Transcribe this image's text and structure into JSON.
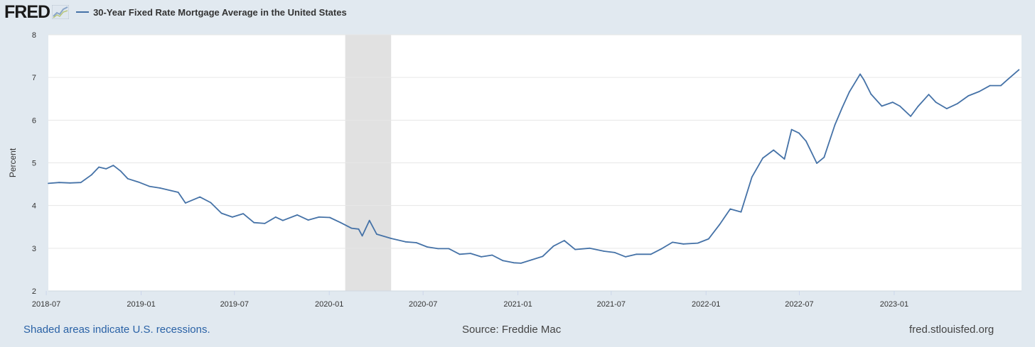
{
  "header": {
    "logo_text": "FRED",
    "series_title": "30-Year Fixed Rate Mortgage Average in the United States"
  },
  "footer": {
    "recession_note": "Shaded areas indicate U.S. recessions.",
    "source": "Source: Freddie Mac",
    "site": "fred.stlouisfed.org"
  },
  "colors": {
    "line": "#4572a7",
    "background": "#e1e9f0",
    "plot_bg": "#ffffff",
    "recession": "#e1e1e1",
    "grid": "#e6e6e6"
  },
  "chart_data": {
    "type": "line",
    "title": "30-Year Fixed Rate Mortgage Average in the United States",
    "xlabel": "",
    "ylabel": "Percent",
    "ylim": [
      2,
      8
    ],
    "yticks": [
      "2",
      "3",
      "4",
      "5",
      "6",
      "7",
      "8"
    ],
    "xlim": [
      "2018-07-05",
      "2023-09-05"
    ],
    "xticks": [
      "2018-07",
      "2019-01",
      "2019-07",
      "2020-01",
      "2020-07",
      "2021-01",
      "2021-07",
      "2022-01",
      "2022-07",
      "2023-01"
    ],
    "grid": true,
    "legend": "top-left",
    "recessions": [
      {
        "start": "2020-02-01",
        "end": "2020-04-30"
      }
    ],
    "series": [
      {
        "name": "30-Year Fixed Rate Mortgage Average in the United States",
        "x": [
          "2018-07-05",
          "2018-07-26",
          "2018-08-16",
          "2018-09-06",
          "2018-09-27",
          "2018-10-11",
          "2018-10-25",
          "2018-11-08",
          "2018-11-22",
          "2018-12-06",
          "2018-12-27",
          "2019-01-17",
          "2019-02-07",
          "2019-02-28",
          "2019-03-14",
          "2019-03-28",
          "2019-04-25",
          "2019-05-16",
          "2019-06-06",
          "2019-06-27",
          "2019-07-18",
          "2019-08-08",
          "2019-08-29",
          "2019-09-19",
          "2019-10-03",
          "2019-10-31",
          "2019-11-21",
          "2019-12-12",
          "2020-01-02",
          "2020-01-23",
          "2020-02-13",
          "2020-02-27",
          "2020-03-05",
          "2020-03-19",
          "2020-04-02",
          "2020-04-30",
          "2020-05-28",
          "2020-06-18",
          "2020-07-09",
          "2020-07-30",
          "2020-08-20",
          "2020-09-10",
          "2020-10-01",
          "2020-10-22",
          "2020-11-12",
          "2020-12-03",
          "2020-12-24",
          "2021-01-07",
          "2021-01-28",
          "2021-02-18",
          "2021-03-11",
          "2021-04-01",
          "2021-04-22",
          "2021-05-20",
          "2021-06-17",
          "2021-07-08",
          "2021-07-29",
          "2021-08-19",
          "2021-09-16",
          "2021-10-07",
          "2021-10-28",
          "2021-11-18",
          "2021-12-16",
          "2022-01-06",
          "2022-01-27",
          "2022-02-17",
          "2022-03-10",
          "2022-03-31",
          "2022-04-21",
          "2022-05-12",
          "2022-06-02",
          "2022-06-16",
          "2022-06-30",
          "2022-07-14",
          "2022-08-04",
          "2022-08-18",
          "2022-09-08",
          "2022-09-22",
          "2022-10-06",
          "2022-10-20",
          "2022-10-27",
          "2022-11-03",
          "2022-11-17",
          "2022-12-08",
          "2022-12-29",
          "2023-01-12",
          "2023-02-02",
          "2023-02-16",
          "2023-03-09",
          "2023-03-23",
          "2023-04-13",
          "2023-05-04",
          "2023-05-25",
          "2023-06-15",
          "2023-07-06",
          "2023-07-27",
          "2023-08-10",
          "2023-08-31"
        ],
        "values": [
          4.52,
          4.54,
          4.53,
          4.54,
          4.72,
          4.9,
          4.86,
          4.94,
          4.81,
          4.63,
          4.55,
          4.45,
          4.41,
          4.35,
          4.31,
          4.06,
          4.2,
          4.07,
          3.82,
          3.73,
          3.81,
          3.6,
          3.58,
          3.73,
          3.65,
          3.78,
          3.66,
          3.73,
          3.72,
          3.6,
          3.47,
          3.45,
          3.29,
          3.65,
          3.33,
          3.23,
          3.15,
          3.13,
          3.03,
          2.99,
          2.99,
          2.86,
          2.88,
          2.8,
          2.84,
          2.71,
          2.66,
          2.65,
          2.73,
          2.81,
          3.05,
          3.18,
          2.97,
          3.0,
          2.93,
          2.9,
          2.8,
          2.86,
          2.86,
          2.99,
          3.14,
          3.1,
          3.12,
          3.22,
          3.55,
          3.92,
          3.85,
          4.67,
          5.11,
          5.3,
          5.09,
          5.78,
          5.7,
          5.51,
          4.99,
          5.13,
          5.89,
          6.29,
          6.66,
          6.94,
          7.08,
          6.95,
          6.61,
          6.33,
          6.42,
          6.33,
          6.09,
          6.32,
          6.6,
          6.42,
          6.27,
          6.39,
          6.57,
          6.67,
          6.81,
          6.81,
          6.96,
          7.18
        ]
      }
    ]
  }
}
